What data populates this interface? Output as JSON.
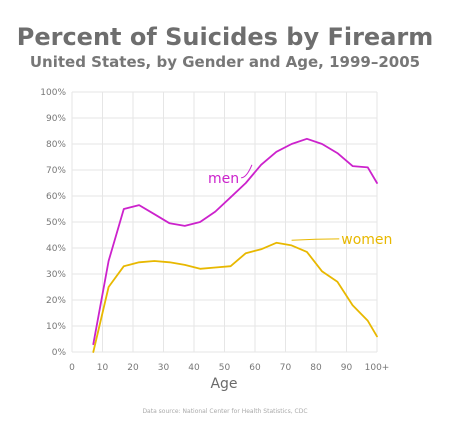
{
  "chart_data": {
    "type": "line",
    "title": "Percent of Suicides by Firearm",
    "subtitle": "United States, by Gender and Age, 1999–2005",
    "xlabel": "Age",
    "ylabel": "",
    "xlim": [
      0,
      100
    ],
    "ylim": [
      0,
      100
    ],
    "x_ticks": [
      "0",
      "10",
      "20",
      "30",
      "40",
      "50",
      "60",
      "70",
      "80",
      "90",
      "100+"
    ],
    "y_ticks": [
      "0%",
      "10%",
      "20%",
      "30%",
      "40%",
      "50%",
      "60%",
      "70%",
      "80%",
      "90%",
      "100%"
    ],
    "grid": true,
    "x": [
      7,
      12,
      17,
      22,
      27,
      32,
      37,
      42,
      47,
      52,
      57,
      62,
      67,
      72,
      77,
      82,
      87,
      92,
      97,
      100
    ],
    "series": [
      {
        "name": "men",
        "color": "#cc22cc",
        "values": [
          3,
          35,
          55,
          56.5,
          53,
          49.5,
          48.5,
          50,
          54,
          59.5,
          65,
          72,
          77,
          80,
          82,
          80,
          76.5,
          71.5,
          71,
          65
        ]
      },
      {
        "name": "women",
        "color": "#e8b800",
        "values": [
          0,
          25,
          33,
          34.5,
          35,
          34.5,
          33.5,
          32,
          32.5,
          33,
          38,
          39.5,
          42,
          41,
          38.5,
          31,
          27,
          18,
          12,
          6
        ]
      }
    ],
    "source": "Data source: National Center for Health Statistics, CDC"
  }
}
